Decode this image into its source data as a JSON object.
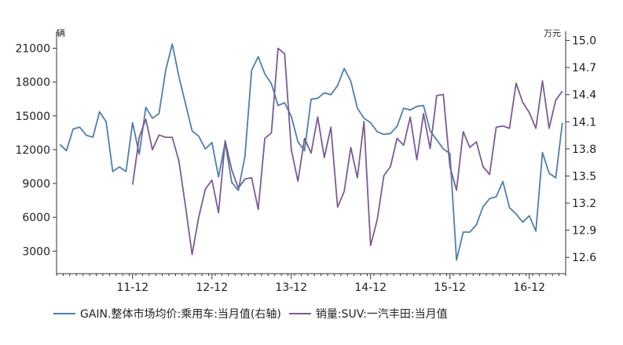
{
  "chart_data": {
    "type": "line",
    "left_axis": {
      "unit": "辆",
      "ticks": [
        3000,
        6000,
        9000,
        12000,
        15000,
        18000,
        21000
      ],
      "range": [
        1000,
        22500
      ]
    },
    "right_axis": {
      "unit": "万元",
      "ticks": [
        12.6,
        12.9,
        13.2,
        13.5,
        13.8,
        14.1,
        14.4,
        14.7,
        15.0
      ],
      "range": [
        12.42,
        15.1
      ]
    },
    "x_ticks": [
      "11-12",
      "12-12",
      "13-12",
      "14-12",
      "15-12",
      "16-12"
    ],
    "series": [
      {
        "name": "GAIN.整体市场均价:乘用车:当月值(右轴)",
        "axis": "right",
        "color": "#4e7fb0",
        "start": "2011-01",
        "values": [
          13.85,
          13.78,
          14.02,
          14.04,
          13.95,
          13.93,
          14.21,
          14.1,
          13.55,
          13.6,
          13.55,
          14.09,
          13.74,
          14.26,
          14.14,
          14.19,
          14.67,
          14.96,
          14.6,
          14.3,
          14.0,
          13.94,
          13.8,
          13.87,
          13.49,
          13.87,
          13.43,
          13.34,
          13.72,
          14.67,
          14.82,
          14.63,
          14.52,
          14.28,
          14.31,
          14.16,
          13.88,
          13.78,
          14.35,
          14.36,
          14.42,
          14.4,
          14.5,
          14.69,
          14.55,
          14.25,
          14.14,
          14.09,
          13.99,
          13.96,
          13.97,
          14.05,
          14.25,
          14.23,
          14.27,
          14.28,
          14.0,
          13.9,
          13.8,
          13.75,
          12.57,
          12.88,
          12.88,
          12.96,
          13.16,
          13.25,
          13.27,
          13.44,
          13.15,
          13.08,
          12.99,
          13.06,
          12.89,
          13.76,
          13.53,
          13.48,
          14.09
        ]
      },
      {
        "name": "销量:SUV:一汽丰田:当月值",
        "color": "#7b5c96",
        "start": "2011-12",
        "values": [
          8900,
          13100,
          14700,
          12000,
          13300,
          13100,
          13100,
          11000,
          7000,
          2700,
          6000,
          8500,
          9300,
          6400,
          12800,
          10200,
          8600,
          9400,
          9500,
          6700,
          13000,
          13500,
          21000,
          20500,
          12000,
          9200,
          13000,
          11700,
          14900,
          11300,
          14000,
          6900,
          8300,
          12200,
          9500,
          14500,
          3500,
          5800,
          9700,
          10500,
          13000,
          12400,
          14900,
          11100,
          15200,
          12100,
          16800,
          16900,
          10500,
          8400,
          13600,
          12200,
          12700,
          10500,
          9800,
          14000,
          14100,
          13900,
          17900,
          16200,
          15300,
          13900,
          18100,
          13900,
          16400,
          17200
        ]
      }
    ],
    "legend": {
      "position": "bottom",
      "items": [
        "GAIN.整体市场均价:乘用车:当月值(右轴)",
        "销量:SUV:一汽丰田:当月值"
      ]
    }
  }
}
